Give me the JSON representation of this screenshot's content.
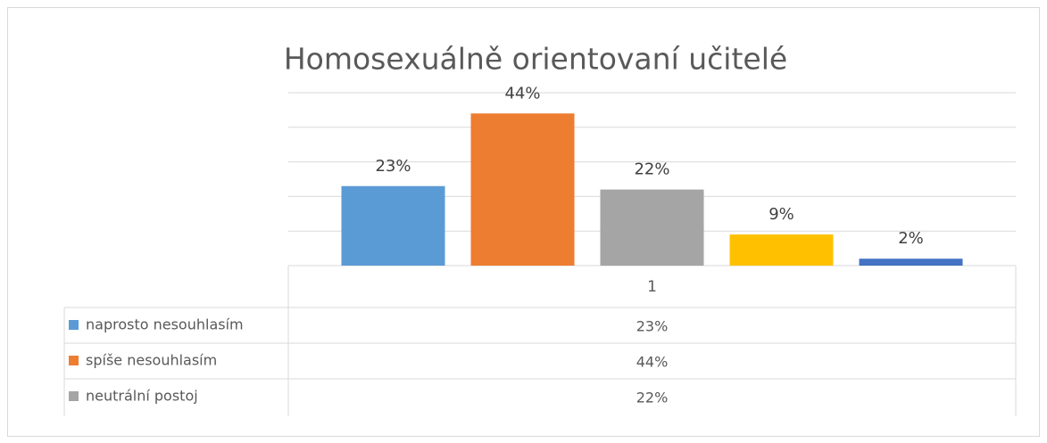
{
  "chart_data": {
    "type": "bar",
    "title": "Homosexuálně orientovaní učitelé",
    "categories": [
      "1"
    ],
    "series": [
      {
        "name": "naprosto nesouhlasím",
        "color": "#5b9bd5",
        "values": [
          23
        ],
        "value_labels": [
          "23%"
        ]
      },
      {
        "name": "spíše nesouhlasím",
        "color": "#ed7d31",
        "values": [
          44
        ],
        "value_labels": [
          "44%"
        ]
      },
      {
        "name": "neutrální postoj",
        "color": "#a5a5a5",
        "values": [
          22
        ],
        "value_labels": [
          "22%"
        ]
      },
      {
        "color": "#ffc000",
        "values": [
          9
        ],
        "value_labels": [
          "9%"
        ]
      },
      {
        "color": "#4472c4",
        "values": [
          2
        ],
        "value_labels": [
          "2%"
        ]
      }
    ],
    "ylim": [
      0,
      50
    ],
    "yticks": [
      0,
      10,
      20,
      30,
      40,
      50
    ],
    "grid": true
  }
}
